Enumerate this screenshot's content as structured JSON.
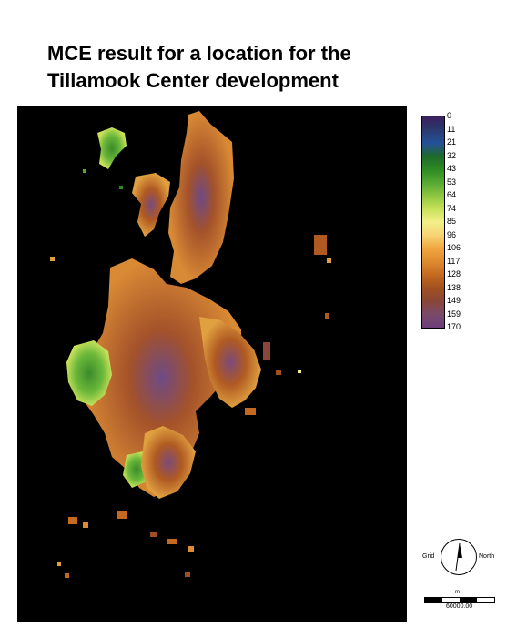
{
  "title": {
    "line1": "MCE result for a location for the",
    "line2": "Tillamook Center development"
  },
  "legend": {
    "values": [
      "0",
      "11",
      "21",
      "32",
      "43",
      "53",
      "64",
      "74",
      "85",
      "96",
      "106",
      "117",
      "128",
      "138",
      "149",
      "159",
      "170"
    ],
    "colors": [
      "#3b1f5e",
      "#2a3a6e",
      "#24509a",
      "#1d6a2a",
      "#2d8a22",
      "#56a832",
      "#8dc63f",
      "#c8e05a",
      "#f2f08a",
      "#f7d374",
      "#f0a640",
      "#de8a30",
      "#c46a20",
      "#a05020",
      "#8a4638",
      "#7a4a6a",
      "#6d3d7a"
    ]
  },
  "north_arrow": {
    "left_label": "Grid",
    "right_label": "North"
  },
  "scale_bar": {
    "unit": "m",
    "value": "60000.00"
  },
  "colors": {
    "background": "#000000",
    "high": "#6d3d7a",
    "mid": "#c46a20",
    "low": "#56a832"
  }
}
